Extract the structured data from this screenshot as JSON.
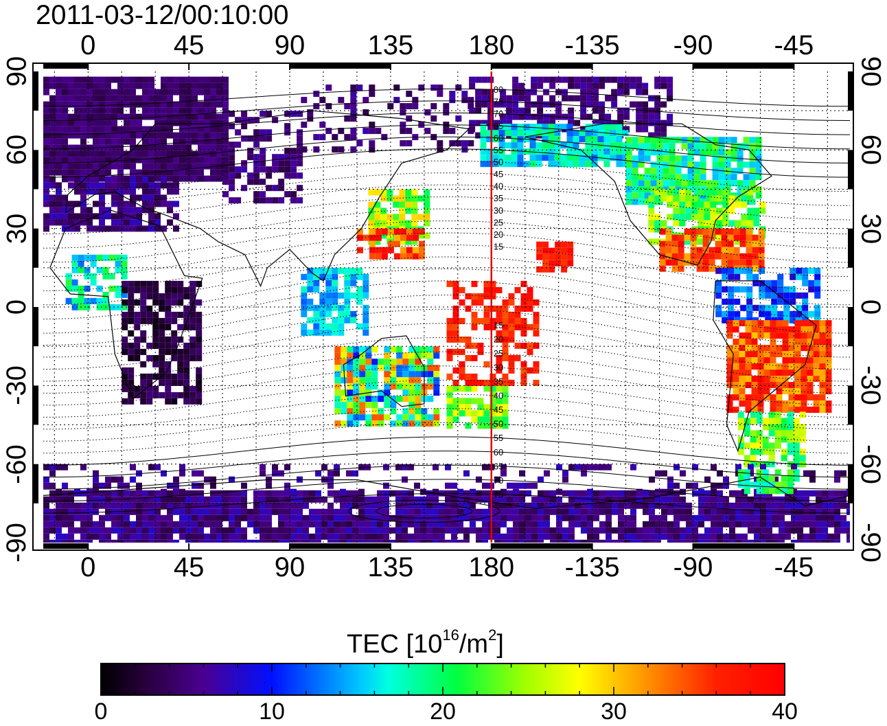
{
  "title": "2011-03-12/00:10:00",
  "x_ticks": [
    "0",
    "45",
    "90",
    "135",
    "180",
    "-135",
    "-90",
    "-45"
  ],
  "y_ticks": [
    "90",
    "60",
    "30",
    "0",
    "-30",
    "-60",
    "-90"
  ],
  "meridian_labels": [
    "80",
    "75",
    "70",
    "65",
    "60",
    "55",
    "50",
    "45",
    "40",
    "35",
    "30",
    "25",
    "20",
    "15",
    "15",
    "20",
    "25",
    "30",
    "35",
    "40",
    "45",
    "50",
    "55",
    "60",
    "65",
    "70",
    "75"
  ],
  "colorbar": {
    "title_prefix": "TEC  [10",
    "title_sup1": "16",
    "title_mid": "/m",
    "title_sup2": "2",
    "title_suffix": "]",
    "ticks": [
      "0",
      "10",
      "20",
      "30",
      "40"
    ],
    "range": [
      0,
      40
    ]
  },
  "colors": {
    "meridian_line": "#e00000",
    "frame": "#000000"
  },
  "map_data": {
    "projection": "equirectangular",
    "lon_range": [
      -20,
      340
    ],
    "lat_range": [
      -90,
      90
    ],
    "meridian_longitude": 180,
    "quantity": "TEC",
    "units": "10^16/m^2"
  }
}
